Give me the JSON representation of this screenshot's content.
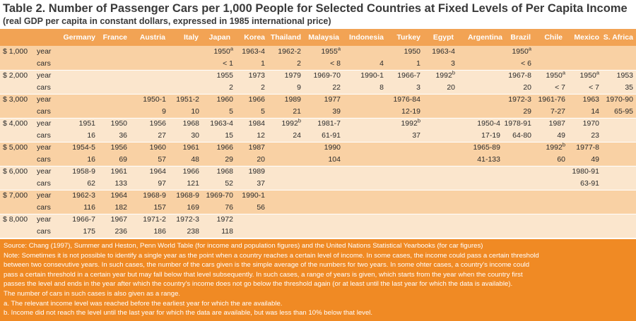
{
  "title": "Table 2. Number of Passenger Cars per 1,000 People for Selected Countries at Fixed Levels of Per Capita Income",
  "subtitle": "(real GDP per capita in constant dollars, expressed in 1985 international price)",
  "columns": [
    "Germany",
    "France",
    "Austria",
    "Italy",
    "Japan",
    "Korea",
    "Thailand",
    "Malaysia",
    "Indonesia",
    "Turkey",
    "Egypt",
    "Argentina",
    "Brazil",
    "Chile",
    "Mexico",
    "S. Africa"
  ],
  "rows": [
    {
      "level": "$ 1,000",
      "year": [
        "",
        "",
        "",
        "",
        "1950|a",
        "1963-4",
        "1962-2",
        "1955|a",
        "",
        "1950",
        "1963-4",
        "",
        "1950|a",
        "",
        "",
        ""
      ],
      "cars": [
        "",
        "",
        "",
        "",
        "< 1",
        "1",
        "2",
        "< 8",
        "4",
        "1",
        "3",
        "",
        "< 6",
        "",
        "",
        ""
      ]
    },
    {
      "level": "$ 2,000",
      "year": [
        "",
        "",
        "",
        "",
        "1955",
        "1973",
        "1979",
        "1969-70",
        "1990-1",
        "1966-7",
        "1992|b",
        "",
        "1967-8",
        "1950|a",
        "1950|a",
        "1953"
      ],
      "cars": [
        "",
        "",
        "",
        "",
        "2",
        "2",
        "9",
        "22",
        "8",
        "3",
        "20",
        "",
        "20",
        "< 7",
        "< 7",
        "35"
      ]
    },
    {
      "level": "$ 3,000",
      "year": [
        "",
        "",
        "1950-1",
        "1951-2",
        "1960",
        "1966",
        "1989",
        "1977",
        "",
        "1976-84",
        "",
        "",
        "1972-3",
        "1961-76",
        "1963",
        "1970-90"
      ],
      "cars": [
        "",
        "",
        "9",
        "10",
        "5",
        "5",
        "21",
        "39",
        "",
        "12-19",
        "",
        "",
        "29",
        "7-27",
        "14",
        "65-95"
      ]
    },
    {
      "level": "$ 4,000",
      "year": [
        "1951",
        "1950",
        "1956",
        "1968",
        "1963-4",
        "1984",
        "1992|b",
        "1981-7",
        "",
        "1992|b",
        "",
        "1950-4",
        "1978-91",
        "1987",
        "1970",
        ""
      ],
      "cars": [
        "16",
        "36",
        "27",
        "30",
        "15",
        "12",
        "24",
        "61-91",
        "",
        "37",
        "",
        "17-19",
        "64-80",
        "49",
        "23",
        ""
      ]
    },
    {
      "level": "$ 5,000",
      "year": [
        "1954-5",
        "1956",
        "1960",
        "1961",
        "1966",
        "1987",
        "",
        "1990",
        "",
        "",
        "",
        "1965-89",
        "",
        "1992|b",
        "1977-8",
        ""
      ],
      "cars": [
        "16",
        "69",
        "57",
        "48",
        "29",
        "20",
        "",
        "104",
        "",
        "",
        "",
        "41-133",
        "",
        "60",
        "49",
        ""
      ]
    },
    {
      "level": "$ 6,000",
      "year": [
        "1958-9",
        "1961",
        "1964",
        "1966",
        "1968",
        "1989",
        "",
        "",
        "",
        "",
        "",
        "",
        "",
        "",
        "1980-91",
        ""
      ],
      "cars": [
        "62",
        "133",
        "97",
        "121",
        "52",
        "37",
        "",
        "",
        "",
        "",
        "",
        "",
        "",
        "",
        "63-91",
        ""
      ]
    },
    {
      "level": "$ 7,000",
      "year": [
        "1962-3",
        "1964",
        "1968-9",
        "1968-9",
        "1969-70",
        "1990-1",
        "",
        "",
        "",
        "",
        "",
        "",
        "",
        "",
        "",
        ""
      ],
      "cars": [
        "116",
        "182",
        "157",
        "169",
        "76",
        "56",
        "",
        "",
        "",
        "",
        "",
        "",
        "",
        "",
        "",
        ""
      ]
    },
    {
      "level": "$ 8,000",
      "year": [
        "1966-7",
        "1967",
        "1971-2",
        "1972-3",
        "1972",
        "",
        "",
        "",
        "",
        "",
        "",
        "",
        "",
        "",
        "",
        ""
      ],
      "cars": [
        "175",
        "236",
        "186",
        "238",
        "118",
        "",
        "",
        "",
        "",
        "",
        "",
        "",
        "",
        "",
        "",
        ""
      ]
    }
  ],
  "row_labels": {
    "year": "year",
    "cars": "cars"
  },
  "notes": [
    "Source: Chang (1997), Summer and Heston, Penn World Table (for income and population figures) and the United Nations Statistical Yearbooks (for car figures)",
    "Note: Sometimes it is not possible to identify  a single year as the point when a country reaches a certain level of income. In some cases, the income could pass a certain threshold",
    "between two consevutive years. In such cases, the number of the cars given is the simple average of the numbers for two years. In some ohter cases, a country's income could",
    "pass a certain threshold in a certain year but may fall below that level subsequently. In such cases, a range of years is given, which starts from the year when the country first",
    "passes the level and ends in the year after which the country's income does not go below the threshold again (or at least until the last year for which the data is available).",
    "The number of cars in such cases is also given as a range.",
    "a. The relevant income level was reached before the earliest year for which the are available.",
    "b. Income did not reach the level until the last year for which the data are available, but was less than 10% below that level."
  ],
  "colors": {
    "header": "#f2a354",
    "band_dark": "#f9d1a4",
    "band_light": "#fbe6cd",
    "notes_bg": "#f08a24"
  }
}
